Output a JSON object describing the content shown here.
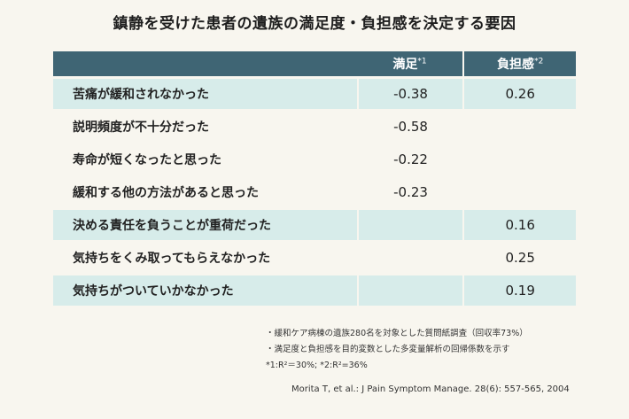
{
  "title": "鎮静を受けた患者の遺族の満足度・負担感を決定する要因",
  "table": {
    "header": {
      "label": "",
      "col1": "満足",
      "col1_note": "*1",
      "col2": "負担感",
      "col2_note": "*2"
    },
    "rows": [
      {
        "label": "苦痛が緩和されなかった",
        "satisfaction": "-0.38",
        "burden": "0.26"
      },
      {
        "label": "説明頻度が不十分だった",
        "satisfaction": "-0.58",
        "burden": ""
      },
      {
        "label": "寿命が短くなったと思った",
        "satisfaction": "-0.22",
        "burden": ""
      },
      {
        "label": "緩和する他の方法があると思った",
        "satisfaction": "-0.23",
        "burden": ""
      },
      {
        "label": "決める責任を負うことが重荷だった",
        "satisfaction": "",
        "burden": "0.16"
      },
      {
        "label": "気持ちをくみ取ってもらえなかった",
        "satisfaction": "",
        "burden": "0.25"
      },
      {
        "label": "気持ちがついていかなかった",
        "satisfaction": "",
        "burden": "0.19"
      }
    ]
  },
  "notes": [
    "・緩和ケア病棟の遺族280名を対象とした質問紙調査（回収率73%）",
    "・満足度と負担感を目的変数とした多変量解析の回帰係数を示す",
    "*1:R²＝30%; *2:R²=36%"
  ],
  "citation": "Morita T, et al.: J Pain Symptom Manage. 28(6): 557-565, 2004",
  "colors": {
    "header_bg": "#3f6574",
    "shaded_row": "#d7ecea",
    "background": "#f8f6ef"
  }
}
